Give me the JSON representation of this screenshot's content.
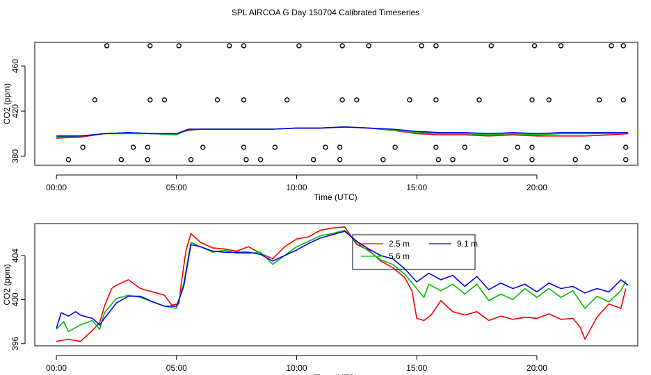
{
  "title": "SPL AIRCOA G  Day 150704  Calibrated Timeseries",
  "chart_data": [
    {
      "type": "line",
      "panel": "top",
      "xlabel": "Time (UTC)",
      "ylabel": "CO2 (ppm)",
      "xlim": [
        -0.9,
        24.2
      ],
      "ylim": [
        372,
        481
      ],
      "x_tick_labels": [
        "00:00",
        "05:00",
        "10:00",
        "15:00",
        "20:00"
      ],
      "x_tick_values": [
        0,
        5,
        10,
        15,
        20
      ],
      "y_tick_labels": [
        "380",
        "420",
        "460"
      ],
      "y_tick_values": [
        380,
        420,
        460
      ],
      "series": [
        {
          "name": "2.5 m",
          "color": "#ee0000",
          "x": [
            0,
            1,
            2,
            3,
            4,
            5,
            5.5,
            6,
            7,
            8,
            9,
            10,
            11,
            12,
            13,
            14,
            15,
            16,
            17,
            18,
            19,
            20,
            21,
            22,
            23,
            23.8
          ],
          "values": [
            396,
            397,
            400,
            401,
            400,
            400,
            403,
            404,
            404,
            404,
            404,
            405,
            405,
            406,
            405,
            403,
            400,
            399,
            399,
            398,
            399,
            398,
            398,
            398,
            399,
            400
          ]
        },
        {
          "name": "5.6 m",
          "color": "#00bb00",
          "x": [
            0,
            1,
            2,
            3,
            4,
            5,
            5.5,
            6,
            7,
            8,
            9,
            10,
            11,
            12,
            13,
            14,
            15,
            16,
            17,
            18,
            19,
            20,
            21,
            22,
            23,
            23.8
          ],
          "values": [
            397,
            398,
            400,
            400,
            400,
            399,
            404,
            404,
            404,
            404,
            404,
            405,
            405,
            406,
            405,
            403,
            401,
            400,
            400,
            399,
            400,
            399,
            400,
            400,
            400,
            401
          ]
        },
        {
          "name": "9.1 m",
          "color": "#0000ee",
          "x": [
            0,
            1,
            2,
            3,
            4,
            5,
            5.5,
            6,
            7,
            8,
            9,
            10,
            11,
            12,
            13,
            14,
            15,
            16,
            17,
            18,
            19,
            20,
            21,
            22,
            23,
            23.8
          ],
          "values": [
            398,
            398,
            400,
            401,
            400,
            400,
            404,
            404,
            404,
            404,
            404,
            405,
            405,
            406,
            405,
            404,
            402,
            401,
            401,
            400,
            401,
            400,
            401,
            401,
            401,
            401
          ]
        }
      ],
      "markers": {
        "style": "open-circle",
        "points": [
          [
            2.1,
            478
          ],
          [
            3.9,
            478
          ],
          [
            5.1,
            478
          ],
          [
            7.2,
            478
          ],
          [
            7.8,
            478
          ],
          [
            10.1,
            478
          ],
          [
            11.9,
            478
          ],
          [
            13.0,
            478
          ],
          [
            15.2,
            478
          ],
          [
            15.8,
            478
          ],
          [
            18.1,
            478
          ],
          [
            19.9,
            478
          ],
          [
            21.0,
            478
          ],
          [
            23.1,
            478
          ],
          [
            23.6,
            478
          ],
          [
            1.6,
            430
          ],
          [
            3.9,
            430
          ],
          [
            4.5,
            430
          ],
          [
            6.7,
            430
          ],
          [
            7.8,
            430
          ],
          [
            9.6,
            430
          ],
          [
            11.9,
            430
          ],
          [
            12.5,
            430
          ],
          [
            14.7,
            430
          ],
          [
            15.8,
            430
          ],
          [
            17.6,
            430
          ],
          [
            19.8,
            430
          ],
          [
            20.5,
            430
          ],
          [
            22.6,
            430
          ],
          [
            23.6,
            430
          ],
          [
            1.1,
            388
          ],
          [
            3.2,
            388
          ],
          [
            3.8,
            388
          ],
          [
            6.1,
            388
          ],
          [
            7.8,
            388
          ],
          [
            9.1,
            388
          ],
          [
            11.2,
            388
          ],
          [
            11.8,
            388
          ],
          [
            14.1,
            388
          ],
          [
            15.8,
            388
          ],
          [
            17.0,
            388
          ],
          [
            19.2,
            388
          ],
          [
            19.8,
            388
          ],
          [
            22.1,
            388
          ],
          [
            23.7,
            388
          ],
          [
            0.5,
            377
          ],
          [
            2.7,
            377
          ],
          [
            3.8,
            377
          ],
          [
            5.6,
            377
          ],
          [
            7.9,
            377
          ],
          [
            8.5,
            377
          ],
          [
            10.7,
            377
          ],
          [
            11.8,
            377
          ],
          [
            13.6,
            377
          ],
          [
            15.9,
            377
          ],
          [
            16.5,
            377
          ],
          [
            18.7,
            377
          ],
          [
            19.8,
            377
          ],
          [
            21.6,
            377
          ],
          [
            23.7,
            377
          ]
        ]
      }
    },
    {
      "type": "line",
      "panel": "bottom",
      "xlabel": "Time (UTC)",
      "ylabel": "CO2 (ppm)",
      "xlim": [
        -0.9,
        24.2
      ],
      "ylim": [
        395.8,
        406.9
      ],
      "x_tick_labels": [
        "00:00",
        "05:00",
        "10:00",
        "15:00",
        "20:00"
      ],
      "x_tick_values": [
        0,
        5,
        10,
        15,
        20
      ],
      "y_tick_labels": [
        "396",
        "400",
        "404"
      ],
      "y_tick_values": [
        396,
        400,
        404
      ],
      "legend": {
        "placement": "top-center",
        "entries": [
          "2.5 m",
          "5.6 m",
          "9.1 m"
        ]
      },
      "series": [
        {
          "name": "2.5 m",
          "color": "#ee0000",
          "x": [
            0,
            0.5,
            1,
            1.5,
            1.8,
            2,
            2.3,
            2.5,
            3,
            3.5,
            4,
            4.5,
            4.8,
            5.1,
            5.2,
            5.4,
            5.6,
            6,
            6.5,
            7,
            7.5,
            8,
            8.5,
            9,
            9.5,
            10,
            10.5,
            11,
            11.5,
            12,
            12.5,
            13,
            13.5,
            14,
            14.5,
            14.8,
            15,
            15.3,
            15.6,
            16,
            16.5,
            17,
            17.5,
            18,
            18.5,
            19,
            19.5,
            20,
            20.5,
            21,
            21.5,
            21.8,
            22,
            22.5,
            23,
            23.5,
            23.7
          ],
          "values": [
            396.2,
            396.4,
            396.2,
            397.2,
            397.9,
            399.4,
            401.0,
            401.3,
            401.8,
            401.0,
            400.7,
            400.4,
            399.5,
            399.6,
            401.5,
            404.5,
            406.0,
            405.2,
            404.7,
            404.6,
            404.4,
            404.8,
            404.2,
            403.7,
            404.8,
            405.5,
            405.7,
            406.3,
            406.5,
            406.6,
            405.0,
            404.5,
            403.5,
            402.9,
            402.0,
            400.8,
            398.3,
            398.1,
            398.6,
            399.9,
            398.9,
            398.6,
            398.9,
            398.1,
            398.5,
            398.2,
            398.4,
            398.3,
            398.7,
            398.2,
            398.3,
            397.5,
            396.4,
            398.4,
            399.6,
            399.2,
            401.0
          ]
        },
        {
          "name": "5.6 m",
          "color": "#00bb00",
          "x": [
            0,
            0.3,
            0.5,
            1,
            1.5,
            1.8,
            2,
            2.5,
            3,
            3.5,
            4,
            4.5,
            5,
            5.3,
            5.6,
            6,
            6.5,
            7,
            7.5,
            8,
            8.5,
            9,
            9.5,
            10,
            10.5,
            11,
            11.5,
            12,
            12.5,
            13,
            13.5,
            14,
            14.5,
            15,
            15.3,
            15.5,
            16,
            16.5,
            17,
            17.5,
            18,
            18.5,
            19,
            19.5,
            20,
            20.5,
            21,
            21.5,
            22,
            22.5,
            23,
            23.5,
            23.7
          ],
          "values": [
            397.3,
            398.0,
            397.1,
            397.7,
            398.1,
            397.3,
            398.8,
            400.1,
            400.4,
            400.2,
            399.8,
            399.4,
            399.2,
            401.5,
            405.2,
            404.8,
            404.3,
            404.5,
            404.2,
            404.2,
            404.3,
            403.2,
            404.0,
            404.8,
            405.3,
            405.8,
            406.0,
            406.3,
            405.2,
            404.4,
            403.6,
            403.2,
            402.3,
            401.0,
            400.2,
            401.4,
            400.8,
            401.4,
            400.5,
            401.4,
            399.9,
            400.5,
            400.0,
            401.0,
            400.2,
            401.0,
            400.2,
            400.8,
            399.2,
            400.3,
            399.8,
            400.8,
            401.7
          ]
        },
        {
          "name": "9.1 m",
          "color": "#0000ee",
          "x": [
            0,
            0.2,
            0.5,
            0.8,
            1,
            1.3,
            1.5,
            1.8,
            2,
            2.5,
            3,
            3.5,
            4,
            4.5,
            5,
            5.3,
            5.6,
            6,
            6.5,
            7,
            7.5,
            8,
            8.5,
            9,
            9.5,
            10,
            10.5,
            11,
            11.5,
            12,
            12.5,
            13,
            13.5,
            14,
            14.5,
            15,
            15.5,
            16,
            16.5,
            17,
            17.5,
            18,
            18.5,
            19,
            19.5,
            20,
            20.5,
            21,
            21.5,
            22,
            22.5,
            23,
            23.5,
            23.8
          ],
          "values": [
            397.4,
            398.8,
            398.5,
            398.9,
            398.6,
            398.4,
            398.3,
            397.7,
            398.3,
            399.7,
            400.3,
            400.3,
            399.8,
            399.4,
            399.4,
            401.2,
            405.0,
            404.8,
            404.4,
            404.3,
            404.3,
            404.3,
            404.1,
            403.5,
            404.0,
            404.5,
            405.1,
            405.6,
            405.9,
            406.2,
            405.3,
            404.6,
            404.0,
            403.7,
            402.8,
            401.6,
            402.4,
            401.8,
            402.2,
            401.2,
            402.1,
            400.9,
            401.5,
            401.0,
            401.4,
            400.7,
            401.5,
            401.0,
            401.2,
            400.6,
            401.0,
            400.7,
            401.8,
            401.3
          ]
        }
      ]
    }
  ]
}
